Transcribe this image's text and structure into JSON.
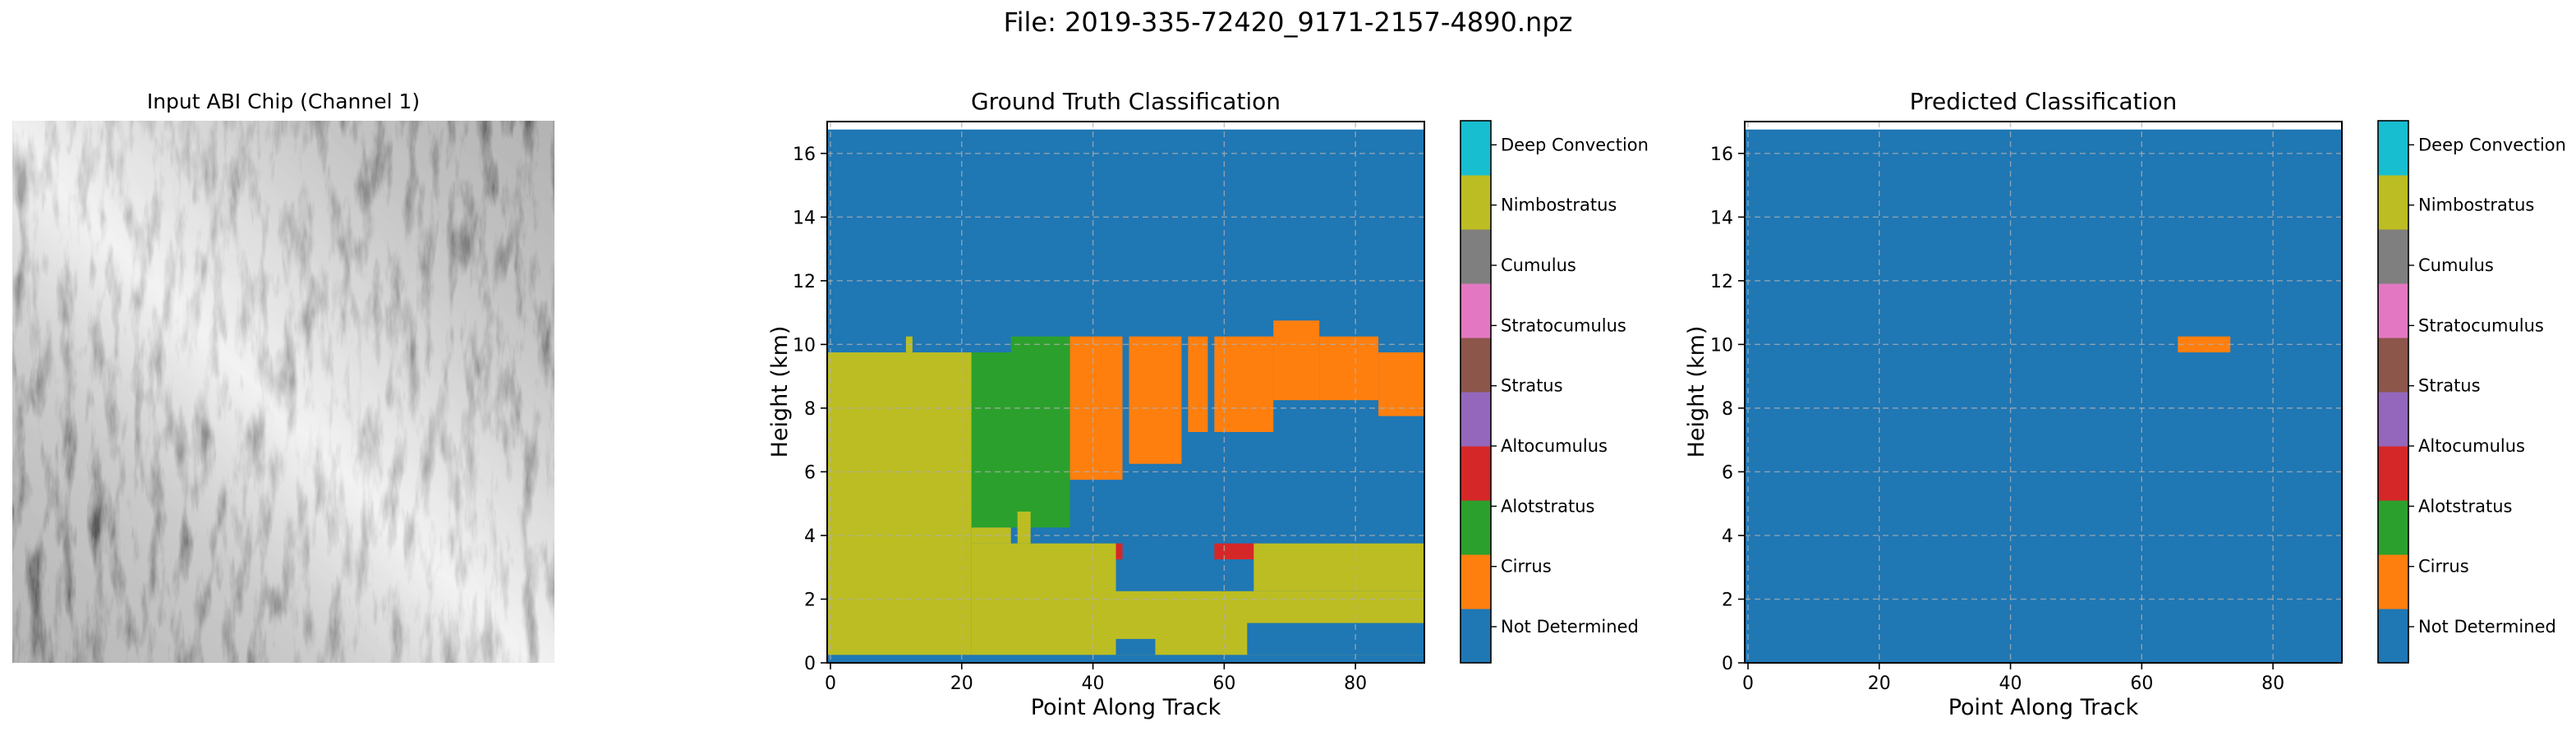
{
  "figure_title": "File: 2019-335-72420_9171-2157-4890.npz",
  "colors": {
    "not_determined": "#1f77b4",
    "cirrus": "#ff7f0e",
    "altostratus": "#2ca02c",
    "altocumulus": "#d62728",
    "stratus": "#9467bd",
    "stratocumulus": "#8c564b",
    "cumulus": "#e377c2",
    "cumulus_gray": "#7f7f7f",
    "nimbostratus": "#bcbd22",
    "deep_convection": "#17becf"
  },
  "colorbar": {
    "labels": [
      "Not Determined",
      "Cirrus",
      "Alotstratus",
      "Altocumulus",
      "Stratus",
      "Stratocumulus",
      "Cumulus",
      "Nimbostratus",
      "Deep Convection"
    ],
    "colors": [
      "#1f77b4",
      "#ff7f0e",
      "#2ca02c",
      "#d62728",
      "#9467bd",
      "#8c564b",
      "#e377c2",
      "#7f7f7f",
      "#bcbd22",
      "#17becf"
    ]
  },
  "chart_data": [
    {
      "type": "image",
      "title": "Input ABI Chip (Channel 1)",
      "colormap": "gray"
    },
    {
      "type": "heatmap",
      "title": "Ground Truth Classification",
      "xlabel": "Point Along Track",
      "ylabel": "Height (km)",
      "xlim": [
        -0.5,
        90.5
      ],
      "ylim": [
        0,
        17
      ],
      "xticks": [
        0,
        20,
        40,
        60,
        80
      ],
      "yticks": [
        0,
        2,
        4,
        6,
        8,
        10,
        12,
        14,
        16
      ],
      "grid": true,
      "background_class": "Not Determined",
      "regions": [
        {
          "class": "Nimbostratus",
          "x": [
            -0.5,
            21.5
          ],
          "y": [
            0.25,
            9.75
          ]
        },
        {
          "class": "Nimbostratus",
          "x": [
            11.5,
            12.5
          ],
          "y": [
            9.75,
            10.25
          ]
        },
        {
          "class": "Altostratus",
          "x": [
            21.5,
            36.5
          ],
          "y": [
            4.25,
            9.75
          ]
        },
        {
          "class": "Altostratus",
          "x": [
            27.5,
            36.5
          ],
          "y": [
            9.75,
            10.25
          ]
        },
        {
          "class": "Nimbostratus",
          "x": [
            21.5,
            43.5
          ],
          "y": [
            0.25,
            3.75
          ]
        },
        {
          "class": "Nimbostratus",
          "x": [
            21.5,
            27.5
          ],
          "y": [
            3.75,
            4.25
          ]
        },
        {
          "class": "Nimbostratus",
          "x": [
            28.5,
            30.5
          ],
          "y": [
            3.75,
            4.75
          ]
        },
        {
          "class": "Cirrus",
          "x": [
            36.5,
            44.5
          ],
          "y": [
            5.75,
            10.25
          ]
        },
        {
          "class": "Cirrus",
          "x": [
            45.5,
            53.5
          ],
          "y": [
            6.25,
            10.25
          ]
        },
        {
          "class": "Cirrus",
          "x": [
            54.5,
            57.5
          ],
          "y": [
            7.25,
            10.25
          ]
        },
        {
          "class": "Cirrus",
          "x": [
            58.5,
            67.5
          ],
          "y": [
            7.25,
            10.25
          ]
        },
        {
          "class": "Cirrus",
          "x": [
            67.5,
            74.5
          ],
          "y": [
            8.25,
            10.75
          ]
        },
        {
          "class": "Cirrus",
          "x": [
            74.5,
            83.5
          ],
          "y": [
            8.25,
            10.25
          ]
        },
        {
          "class": "Cirrus",
          "x": [
            83.5,
            90.5
          ],
          "y": [
            7.75,
            9.75
          ]
        },
        {
          "class": "Altocumulus",
          "x": [
            43.5,
            44.5
          ],
          "y": [
            3.25,
            3.75
          ]
        },
        {
          "class": "Altocumulus",
          "x": [
            58.5,
            65.5
          ],
          "y": [
            3.25,
            3.75
          ]
        },
        {
          "class": "Nimbostratus",
          "x": [
            43.5,
            90.5
          ],
          "y": [
            0.25,
            2.25
          ]
        },
        {
          "class": "Nimbostratus",
          "x": [
            64.5,
            90.5
          ],
          "y": [
            2.25,
            3.75
          ]
        },
        {
          "class": "Not Determined",
          "x": [
            43.5,
            49.5
          ],
          "y": [
            0.25,
            0.75
          ]
        },
        {
          "class": "Not Determined",
          "x": [
            63.5,
            90.5
          ],
          "y": [
            0.25,
            1.25
          ]
        }
      ]
    },
    {
      "type": "heatmap",
      "title": "Predicted Classification",
      "xlabel": "Point Along Track",
      "ylabel": "Height (km)",
      "xlim": [
        -0.5,
        90.5
      ],
      "ylim": [
        0,
        17
      ],
      "xticks": [
        0,
        20,
        40,
        60,
        80
      ],
      "yticks": [
        0,
        2,
        4,
        6,
        8,
        10,
        12,
        14,
        16
      ],
      "grid": true,
      "background_class": "Not Determined",
      "regions": [
        {
          "class": "Cirrus",
          "x": [
            65.5,
            73.5
          ],
          "y": [
            9.75,
            10.25
          ]
        }
      ]
    }
  ]
}
